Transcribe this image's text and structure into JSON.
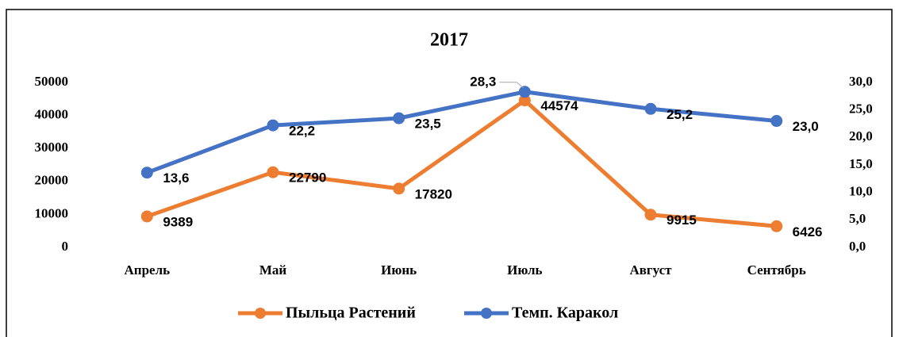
{
  "chart_data": {
    "type": "line",
    "title": "2017",
    "categories": [
      "Апрель",
      "Май",
      "Июнь",
      "Июль",
      "Август",
      "Сентябрь"
    ],
    "series": [
      {
        "name": "Пыльца Растений",
        "color": "#ed7d31",
        "values": [
          9389,
          22790,
          17820,
          44574,
          9915,
          6426
        ]
      },
      {
        "name": "Темп. Каракол",
        "color": "#4472c4",
        "axis": "y2",
        "values": [
          13.6,
          22.2,
          23.5,
          28.3,
          25.2,
          23.0
        ],
        "value_labels": [
          "13,6",
          "22,2",
          "23,5",
          "28,3",
          "25,2",
          "23,0"
        ]
      }
    ],
    "ylim": [
      0,
      50000
    ],
    "yticks": [
      0,
      10000,
      20000,
      30000,
      40000,
      50000
    ],
    "y2lim": [
      0,
      30
    ],
    "y2ticks": [
      {
        "value": 0,
        "label": "0,0"
      },
      {
        "value": 5,
        "label": "5,0"
      },
      {
        "value": 10,
        "label": "10,0"
      },
      {
        "value": 15,
        "label": "15,0"
      },
      {
        "value": 20,
        "label": "20,0"
      },
      {
        "value": 25,
        "label": "25,0"
      },
      {
        "value": 30,
        "label": "30,0"
      }
    ],
    "legend": "bottom"
  }
}
